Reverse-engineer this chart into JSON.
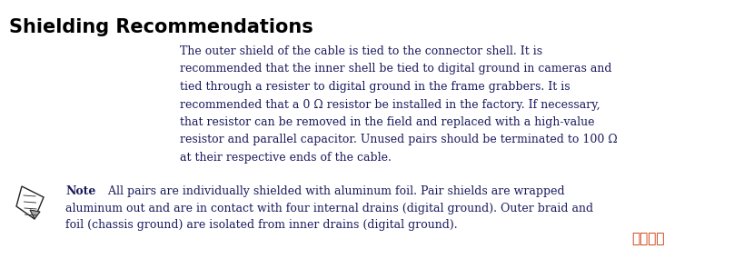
{
  "title": "Shielding Recommendations",
  "title_fontsize": 15,
  "title_color": "#000000",
  "background_color": "#ffffff",
  "body_text_line1": "The outer shield of the cable is tied to the connector shell. It is",
  "body_text_line2": "recommended that the inner shell be tied to digital ground in cameras and",
  "body_text_line3": "tied through a resister to digital ground in the frame grabbers. It is",
  "body_text_line4": "recommended that a 0 Ω resistor be installed in the factory. If necessary,",
  "body_text_line5": "that resistor can be removed in the field and replaced with a high-value",
  "body_text_line6": "resistor and parallel capacitor. Unused pairs should be terminated to 100 Ω",
  "body_text_line7": "at their respective ends of the cable.",
  "body_text_color": "#1a1a5e",
  "body_fontsize": 9.0,
  "note_label": "Note",
  "note_text_1": "   All pairs are individually shielded with aluminum foil. Pair shields are wrapped",
  "note_text_2": "aluminum out and are in contact with four internal drains (digital ground). Outer braid and",
  "note_text_3": "foil (chassis ground) are isolated from inner drains (digital ground).",
  "note_text_color": "#1a1a5e",
  "note_fontsize": 9.0,
  "watermark_text": "吉林龙网",
  "watermark_color": "#cc3300",
  "figsize": [
    8.19,
    3.07
  ],
  "dpi": 100
}
